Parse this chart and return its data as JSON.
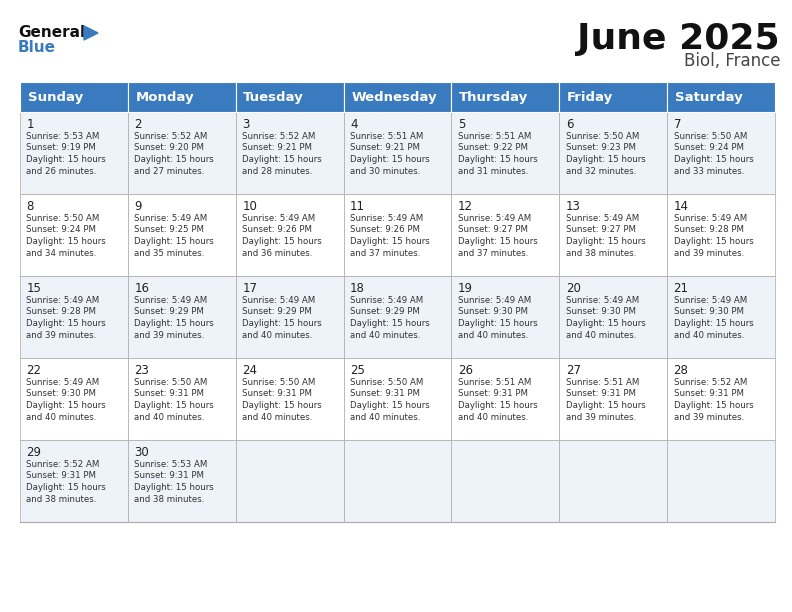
{
  "title": "June 2025",
  "subtitle": "Biol, France",
  "header_color": "#3a7bbf",
  "header_text_color": "#ffffff",
  "days_of_week": [
    "Sunday",
    "Monday",
    "Tuesday",
    "Wednesday",
    "Thursday",
    "Friday",
    "Saturday"
  ],
  "bg_color": "#ffffff",
  "cell_border_color": "#aaaaaa",
  "day_num_color": "#222222",
  "info_color": "#333333",
  "calendar_data": [
    [
      {
        "day": 1,
        "sunrise": "5:53 AM",
        "sunset": "9:19 PM",
        "dl1": "15 hours",
        "dl2": "and 26 minutes."
      },
      {
        "day": 2,
        "sunrise": "5:52 AM",
        "sunset": "9:20 PM",
        "dl1": "15 hours",
        "dl2": "and 27 minutes."
      },
      {
        "day": 3,
        "sunrise": "5:52 AM",
        "sunset": "9:21 PM",
        "dl1": "15 hours",
        "dl2": "and 28 minutes."
      },
      {
        "day": 4,
        "sunrise": "5:51 AM",
        "sunset": "9:21 PM",
        "dl1": "15 hours",
        "dl2": "and 30 minutes."
      },
      {
        "day": 5,
        "sunrise": "5:51 AM",
        "sunset": "9:22 PM",
        "dl1": "15 hours",
        "dl2": "and 31 minutes."
      },
      {
        "day": 6,
        "sunrise": "5:50 AM",
        "sunset": "9:23 PM",
        "dl1": "15 hours",
        "dl2": "and 32 minutes."
      },
      {
        "day": 7,
        "sunrise": "5:50 AM",
        "sunset": "9:24 PM",
        "dl1": "15 hours",
        "dl2": "and 33 minutes."
      }
    ],
    [
      {
        "day": 8,
        "sunrise": "5:50 AM",
        "sunset": "9:24 PM",
        "dl1": "15 hours",
        "dl2": "and 34 minutes."
      },
      {
        "day": 9,
        "sunrise": "5:49 AM",
        "sunset": "9:25 PM",
        "dl1": "15 hours",
        "dl2": "and 35 minutes."
      },
      {
        "day": 10,
        "sunrise": "5:49 AM",
        "sunset": "9:26 PM",
        "dl1": "15 hours",
        "dl2": "and 36 minutes."
      },
      {
        "day": 11,
        "sunrise": "5:49 AM",
        "sunset": "9:26 PM",
        "dl1": "15 hours",
        "dl2": "and 37 minutes."
      },
      {
        "day": 12,
        "sunrise": "5:49 AM",
        "sunset": "9:27 PM",
        "dl1": "15 hours",
        "dl2": "and 37 minutes."
      },
      {
        "day": 13,
        "sunrise": "5:49 AM",
        "sunset": "9:27 PM",
        "dl1": "15 hours",
        "dl2": "and 38 minutes."
      },
      {
        "day": 14,
        "sunrise": "5:49 AM",
        "sunset": "9:28 PM",
        "dl1": "15 hours",
        "dl2": "and 39 minutes."
      }
    ],
    [
      {
        "day": 15,
        "sunrise": "5:49 AM",
        "sunset": "9:28 PM",
        "dl1": "15 hours",
        "dl2": "and 39 minutes."
      },
      {
        "day": 16,
        "sunrise": "5:49 AM",
        "sunset": "9:29 PM",
        "dl1": "15 hours",
        "dl2": "and 39 minutes."
      },
      {
        "day": 17,
        "sunrise": "5:49 AM",
        "sunset": "9:29 PM",
        "dl1": "15 hours",
        "dl2": "and 40 minutes."
      },
      {
        "day": 18,
        "sunrise": "5:49 AM",
        "sunset": "9:29 PM",
        "dl1": "15 hours",
        "dl2": "and 40 minutes."
      },
      {
        "day": 19,
        "sunrise": "5:49 AM",
        "sunset": "9:30 PM",
        "dl1": "15 hours",
        "dl2": "and 40 minutes."
      },
      {
        "day": 20,
        "sunrise": "5:49 AM",
        "sunset": "9:30 PM",
        "dl1": "15 hours",
        "dl2": "and 40 minutes."
      },
      {
        "day": 21,
        "sunrise": "5:49 AM",
        "sunset": "9:30 PM",
        "dl1": "15 hours",
        "dl2": "and 40 minutes."
      }
    ],
    [
      {
        "day": 22,
        "sunrise": "5:49 AM",
        "sunset": "9:30 PM",
        "dl1": "15 hours",
        "dl2": "and 40 minutes."
      },
      {
        "day": 23,
        "sunrise": "5:50 AM",
        "sunset": "9:31 PM",
        "dl1": "15 hours",
        "dl2": "and 40 minutes."
      },
      {
        "day": 24,
        "sunrise": "5:50 AM",
        "sunset": "9:31 PM",
        "dl1": "15 hours",
        "dl2": "and 40 minutes."
      },
      {
        "day": 25,
        "sunrise": "5:50 AM",
        "sunset": "9:31 PM",
        "dl1": "15 hours",
        "dl2": "and 40 minutes."
      },
      {
        "day": 26,
        "sunrise": "5:51 AM",
        "sunset": "9:31 PM",
        "dl1": "15 hours",
        "dl2": "and 40 minutes."
      },
      {
        "day": 27,
        "sunrise": "5:51 AM",
        "sunset": "9:31 PM",
        "dl1": "15 hours",
        "dl2": "and 39 minutes."
      },
      {
        "day": 28,
        "sunrise": "5:52 AM",
        "sunset": "9:31 PM",
        "dl1": "15 hours",
        "dl2": "and 39 minutes."
      }
    ],
    [
      {
        "day": 29,
        "sunrise": "5:52 AM",
        "sunset": "9:31 PM",
        "dl1": "15 hours",
        "dl2": "and 38 minutes."
      },
      {
        "day": 30,
        "sunrise": "5:53 AM",
        "sunset": "9:31 PM",
        "dl1": "15 hours",
        "dl2": "and 38 minutes."
      },
      null,
      null,
      null,
      null,
      null
    ]
  ],
  "logo_general_color": "#111111",
  "logo_blue_color": "#3a7bbf",
  "title_fontsize": 26,
  "subtitle_fontsize": 12,
  "header_fontsize": 9.5,
  "day_num_fontsize": 8.5,
  "cell_text_fontsize": 6.2
}
